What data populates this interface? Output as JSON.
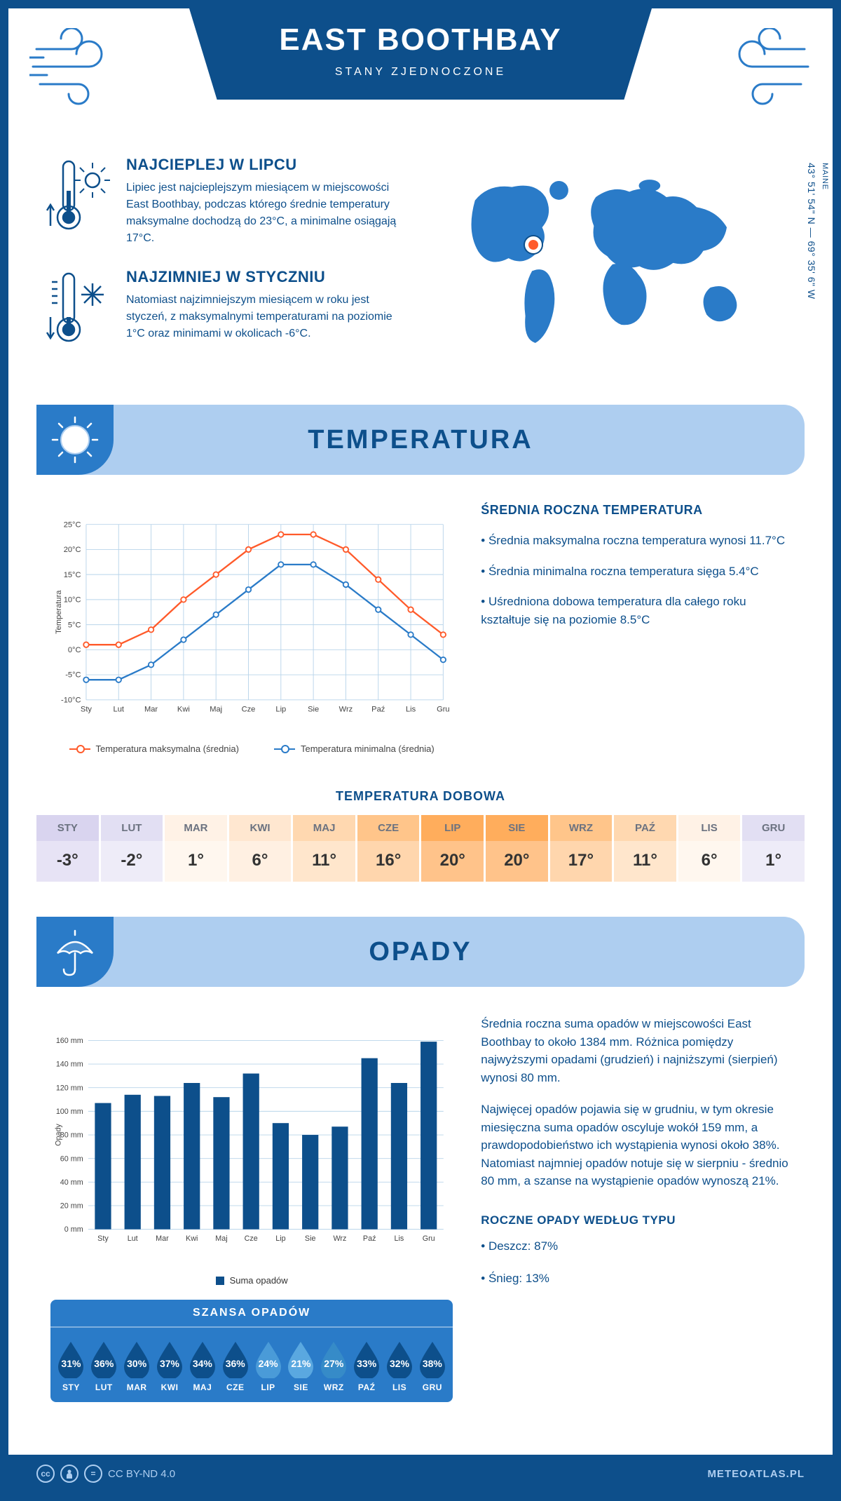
{
  "header": {
    "title": "EAST BOOTHBAY",
    "subtitle": "STANY ZJEDNOCZONE"
  },
  "location": {
    "coords": "43° 51' 54\" N — 69° 35' 6\" W",
    "region": "MAINE",
    "marker_color": "#ff5a2a"
  },
  "intro": {
    "hot": {
      "title": "NAJCIEPLEJ W LIPCU",
      "text": "Lipiec jest najcieplejszym miesiącem w miejscowości East Boothbay, podczas którego średnie temperatury maksymalne dochodzą do 23°C, a minimalne osiągają 17°C."
    },
    "cold": {
      "title": "NAJZIMNIEJ W STYCZNIU",
      "text": "Natomiast najzimniejszym miesiącem w roku jest styczeń, z maksymalnymi temperaturami na poziomie 1°C oraz minimami w okolicach -6°C."
    }
  },
  "temperature_section": {
    "header": "TEMPERATURA",
    "info_title": "ŚREDNIA ROCZNA TEMPERATURA",
    "bullets": [
      "• Średnia maksymalna roczna temperatura wynosi 11.7°C",
      "• Średnia minimalna roczna temperatura sięga 5.4°C",
      "• Uśredniona dobowa temperatura dla całego roku kształtuje się na poziomie 8.5°C"
    ],
    "chart": {
      "type": "line",
      "months": [
        "Sty",
        "Lut",
        "Mar",
        "Kwi",
        "Maj",
        "Cze",
        "Lip",
        "Sie",
        "Wrz",
        "Paź",
        "Lis",
        "Gru"
      ],
      "y_label": "Temperatura",
      "ylim": [
        -10,
        25
      ],
      "ytick_step": 5,
      "grid_color": "#b8d4ea",
      "max_color": "#ff5a2a",
      "min_color": "#2a7bc8",
      "max_series": [
        1,
        1,
        4,
        10,
        15,
        20,
        23,
        23,
        20,
        14,
        8,
        3
      ],
      "min_series": [
        -6,
        -6,
        -3,
        2,
        7,
        12,
        17,
        17,
        13,
        8,
        3,
        -2
      ],
      "legend_max": "Temperatura maksymalna (średnia)",
      "legend_min": "Temperatura minimalna (średnia)"
    },
    "daily": {
      "title": "TEMPERATURA DOBOWA",
      "months": [
        "STY",
        "LUT",
        "MAR",
        "KWI",
        "MAJ",
        "CZE",
        "LIP",
        "SIE",
        "WRZ",
        "PAŹ",
        "LIS",
        "GRU"
      ],
      "values": [
        "-3°",
        "-2°",
        "1°",
        "6°",
        "11°",
        "16°",
        "20°",
        "20°",
        "17°",
        "11°",
        "6°",
        "1°"
      ],
      "header_colors": [
        "#d9d4ef",
        "#e2dff3",
        "#fff2e6",
        "#ffe7d0",
        "#ffd8b0",
        "#ffc58a",
        "#ffad5c",
        "#ffad5c",
        "#ffc58a",
        "#ffd8b0",
        "#fff2e6",
        "#e2dff3"
      ],
      "value_colors": [
        "#e7e3f5",
        "#eeecf8",
        "#fff7ef",
        "#fff0e2",
        "#ffe6cc",
        "#ffd6ad",
        "#ffc38a",
        "#ffc38a",
        "#ffd6ad",
        "#ffe6cc",
        "#fff7ef",
        "#eeecf8"
      ]
    }
  },
  "precip_section": {
    "header": "OPADY",
    "chart": {
      "type": "bar",
      "months": [
        "Sty",
        "Lut",
        "Mar",
        "Kwi",
        "Maj",
        "Cze",
        "Lip",
        "Sie",
        "Wrz",
        "Paź",
        "Lis",
        "Gru"
      ],
      "y_label": "Opady",
      "ylim": [
        0,
        160
      ],
      "ytick_step": 20,
      "bar_color": "#0d4f8b",
      "grid_color": "#b8d4ea",
      "values": [
        107,
        114,
        113,
        124,
        112,
        132,
        90,
        80,
        87,
        145,
        124,
        159
      ],
      "legend": "Suma opadów"
    },
    "text": [
      "Średnia roczna suma opadów w miejscowości East Boothbay to około 1384 mm. Różnica pomiędzy najwyższymi opadami (grudzień) i najniższymi (sierpień) wynosi 80 mm.",
      "Najwięcej opadów pojawia się w grudniu, w tym okresie miesięczna suma opadów oscyluje wokół 159 mm, a prawdopodobieństwo ich wystąpienia wynosi około 38%. Natomiast najmniej opadów notuje się w sierpniu - średnio 80 mm, a szanse na wystąpienie opadów wynoszą 21%."
    ],
    "drops": {
      "title": "SZANSA OPADÓW",
      "months": [
        "STY",
        "LUT",
        "MAR",
        "KWI",
        "MAJ",
        "CZE",
        "LIP",
        "SIE",
        "WRZ",
        "PAŹ",
        "LIS",
        "GRU"
      ],
      "values": [
        "31%",
        "36%",
        "30%",
        "37%",
        "34%",
        "36%",
        "24%",
        "21%",
        "27%",
        "33%",
        "32%",
        "38%"
      ],
      "colors": [
        "#0d4f8b",
        "#0d4f8b",
        "#0d4f8b",
        "#0d4f8b",
        "#0d4f8b",
        "#0d4f8b",
        "#4a9bd8",
        "#5aa8e0",
        "#368bc8",
        "#0d4f8b",
        "#0d4f8b",
        "#0d4f8b"
      ]
    },
    "by_type": {
      "title": "ROCZNE OPADY WEDŁUG TYPU",
      "rows": [
        "• Deszcz: 87%",
        "• Śnieg: 13%"
      ]
    }
  },
  "footer": {
    "license": "CC BY-ND 4.0",
    "brand": "METEOATLAS.PL"
  },
  "colors": {
    "primary": "#0d4f8b",
    "light": "#aecef0",
    "mid": "#2a7bc8",
    "accent": "#ff5a2a",
    "background": "#ffffff"
  }
}
